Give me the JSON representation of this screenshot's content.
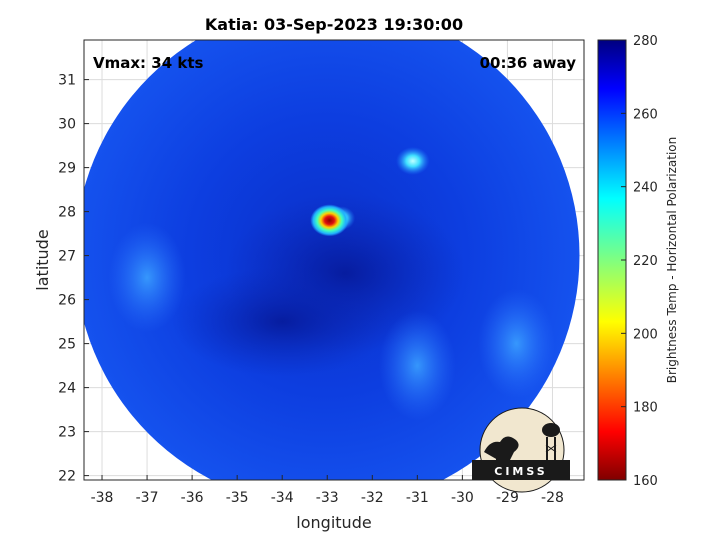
{
  "chart_data": {
    "type": "heatmap",
    "title": "Katia: 03-Sep-2023 19:30:00",
    "xlabel": "longitude",
    "ylabel": "latitude",
    "xlim": [
      -38.4,
      -27.3
    ],
    "ylim": [
      21.9,
      31.9
    ],
    "x_ticks": [
      -38,
      -37,
      -36,
      -35,
      -34,
      -33,
      -32,
      -31,
      -30,
      -29,
      -28
    ],
    "y_ticks": [
      22,
      23,
      24,
      25,
      26,
      27,
      28,
      29,
      30,
      31
    ],
    "grid": true,
    "annotations": {
      "left": "Vmax: 34 kts",
      "right": "00:36 away"
    },
    "swath": {
      "shape": "circle",
      "center_lon": -33.0,
      "center_lat": 27.0,
      "radius_deg": 5.6
    },
    "features": [
      {
        "lon": -32.95,
        "lat": 27.8,
        "value": 170
      },
      {
        "lon": -32.7,
        "lat": 27.85,
        "value": 225
      },
      {
        "lon": -31.1,
        "lat": 29.15,
        "value": 235
      },
      {
        "lon": -37.0,
        "lat": 26.5,
        "value": 245
      },
      {
        "lon": -31.0,
        "lat": 24.5,
        "value": 250
      },
      {
        "lon": -28.8,
        "lat": 25.0,
        "value": 248
      }
    ],
    "background_value": 262,
    "colorbar": {
      "label": "Brightness Temp - Horizontal Polarization",
      "min": 160,
      "max": 280,
      "ticks": [
        160,
        180,
        200,
        220,
        240,
        260,
        280
      ],
      "colormap": "jet"
    }
  },
  "logo": {
    "text": "CIMSS"
  }
}
